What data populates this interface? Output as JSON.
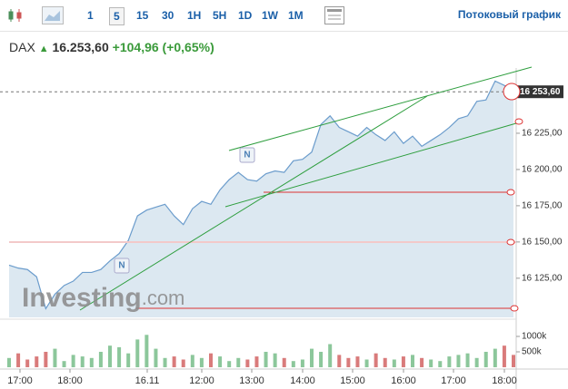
{
  "toolbar": {
    "intervals": [
      "1",
      "5",
      "15",
      "30",
      "1H",
      "5H",
      "1D",
      "1W",
      "1M"
    ],
    "selected": "5",
    "stream": "Потоковый график"
  },
  "header": {
    "symbol": "DAX",
    "price": "16.253,60",
    "change": "+104,96",
    "change_pct": "(+0,65%)"
  },
  "watermark": {
    "brand": "Investing",
    ".com": ".com"
  },
  "chart_data": {
    "type": "area",
    "series": [
      {
        "name": "DAX",
        "color": "#6b9ccc",
        "fill": "#dce8f1",
        "values": [
          16134,
          16132,
          16131,
          16126,
          16104,
          16114,
          16120,
          16123,
          16129,
          16129,
          16131,
          16137,
          16142,
          16151,
          16168,
          16172,
          16174,
          16176,
          16168,
          16162,
          16173,
          16178,
          16176,
          16186,
          16193,
          16198,
          16193,
          16192,
          16197,
          16199,
          16198,
          16206,
          16207,
          16212,
          16231,
          16237,
          16229,
          16226,
          16223,
          16229,
          16224,
          16220,
          16226,
          16218,
          16223,
          16216,
          16220,
          16224,
          16229,
          16235,
          16237,
          16247,
          16248,
          16261,
          16258,
          16254
        ]
      }
    ],
    "ylim": [
      16098,
      16270
    ],
    "yticks": [
      {
        "value": 16125,
        "label": "16 125,00"
      },
      {
        "value": 16150,
        "label": "16 150,00"
      },
      {
        "value": 16175,
        "label": "16 175,00"
      },
      {
        "value": 16200,
        "label": "16 200,00"
      },
      {
        "value": 16225,
        "label": "16 225,00"
      }
    ],
    "last_price": {
      "value": 16253.6,
      "label": "16 253,60"
    },
    "xtick_labels": [
      "17:00",
      "18:00",
      "16.11",
      "12:00",
      "13:00",
      "14:00",
      "15:00",
      "16:00",
      "17:00",
      "18:00"
    ],
    "volume": {
      "values": [
        300,
        450,
        250,
        350,
        500,
        600,
        200,
        400,
        350,
        300,
        500,
        700,
        650,
        450,
        900,
        1050,
        600,
        300,
        350,
        250,
        400,
        300,
        450,
        350,
        200,
        300,
        250,
        350,
        500,
        450,
        300,
        200,
        250,
        600,
        500,
        750,
        400,
        300,
        350,
        250,
        450,
        300,
        250,
        350,
        400,
        300,
        250,
        200,
        350,
        400,
        450,
        300,
        500,
        600,
        700,
        400
      ],
      "up_color": "#8cc79b",
      "down_color": "#d97b7b",
      "ylim": [
        0,
        1470
      ],
      "yticks": [
        {
          "value": 500,
          "label": "500k"
        },
        {
          "value": 1000,
          "label": "1000k"
        }
      ]
    }
  }
}
